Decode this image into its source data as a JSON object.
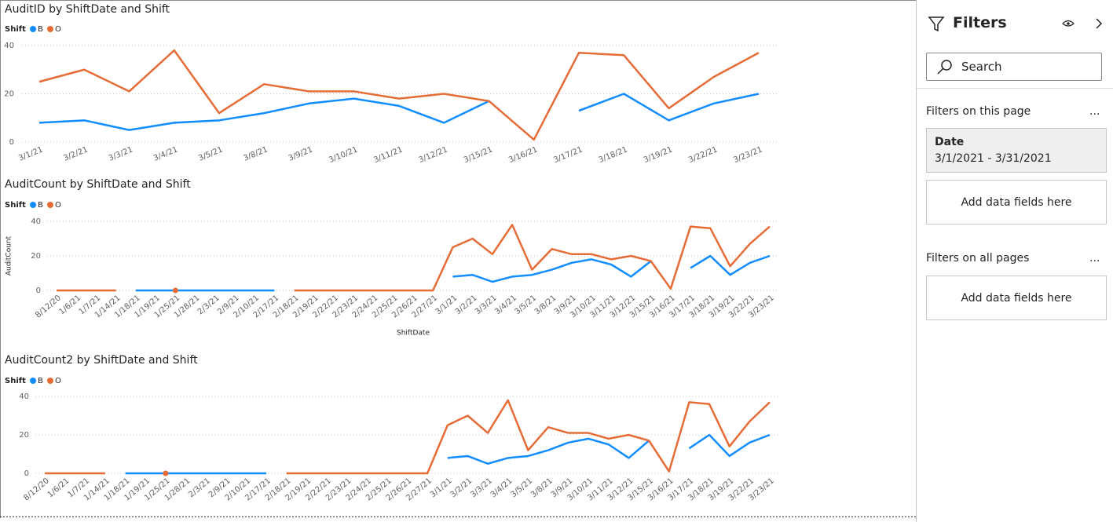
{
  "chart_data": [
    {
      "type": "line",
      "title": "AuditID by ShiftDate and Shift",
      "legend_title": "Shift",
      "categories": [
        "3/1/21",
        "3/2/21",
        "3/3/21",
        "3/4/21",
        "3/5/21",
        "3/8/21",
        "3/9/21",
        "3/10/21",
        "3/11/21",
        "3/12/21",
        "3/15/21",
        "3/16/21",
        "3/17/21",
        "3/18/21",
        "3/19/21",
        "3/22/21",
        "3/23/21"
      ],
      "series": [
        {
          "name": "B",
          "color": "#118DFF",
          "values": [
            8,
            9,
            5,
            8,
            9,
            12,
            16,
            18,
            15,
            8,
            17,
            null,
            13,
            20,
            9,
            16,
            20
          ]
        },
        {
          "name": "O",
          "color": "#E66C37",
          "values": [
            25,
            30,
            21,
            38,
            12,
            24,
            21,
            21,
            18,
            20,
            17,
            1,
            37,
            36,
            14,
            27,
            37
          ]
        }
      ],
      "ylim": [
        0,
        40
      ],
      "yticks": [
        0,
        20,
        40
      ],
      "grid": true
    },
    {
      "type": "line",
      "title": "AuditCount by ShiftDate and Shift",
      "legend_title": "Shift",
      "y_label": "AuditCount",
      "x_label": "ShiftDate",
      "categories": [
        "8/12/20",
        "1/6/21",
        "1/7/21",
        "1/14/21",
        "1/18/21",
        "1/19/21",
        "1/25/21",
        "1/28/21",
        "2/3/21",
        "2/9/21",
        "2/10/21",
        "2/17/21",
        "2/18/21",
        "2/19/21",
        "2/22/21",
        "2/23/21",
        "2/24/21",
        "2/25/21",
        "2/26/21",
        "2/27/21",
        "3/1/21",
        "3/2/21",
        "3/3/21",
        "3/4/21",
        "3/5/21",
        "3/8/21",
        "3/9/21",
        "3/10/21",
        "3/11/21",
        "3/12/21",
        "3/15/21",
        "3/16/21",
        "3/17/21",
        "3/18/21",
        "3/19/21",
        "3/22/21",
        "3/23/21"
      ],
      "series": [
        {
          "name": "B",
          "color": "#118DFF",
          "values": [
            null,
            null,
            null,
            null,
            0,
            0,
            0,
            0,
            0,
            0,
            0,
            0,
            null,
            null,
            null,
            null,
            null,
            null,
            null,
            null,
            8,
            9,
            5,
            8,
            9,
            12,
            16,
            18,
            15,
            8,
            17,
            null,
            13,
            20,
            9,
            16,
            20
          ]
        },
        {
          "name": "O",
          "color": "#E66C37",
          "values": [
            0,
            0,
            0,
            0,
            null,
            null,
            0,
            null,
            null,
            null,
            null,
            null,
            0,
            0,
            0,
            0,
            0,
            0,
            0,
            0,
            25,
            30,
            21,
            38,
            12,
            24,
            21,
            21,
            18,
            20,
            17,
            1,
            37,
            36,
            14,
            27,
            37
          ]
        }
      ],
      "ylim": [
        0,
        40
      ],
      "yticks": [
        0,
        20,
        40
      ],
      "grid": true
    },
    {
      "type": "line",
      "title": "AuditCount2 by ShiftDate and Shift",
      "legend_title": "Shift",
      "categories": [
        "8/12/20",
        "1/6/21",
        "1/7/21",
        "1/14/21",
        "1/18/21",
        "1/19/21",
        "1/25/21",
        "1/28/21",
        "2/3/21",
        "2/9/21",
        "2/10/21",
        "2/17/21",
        "2/18/21",
        "2/19/21",
        "2/22/21",
        "2/23/21",
        "2/24/21",
        "2/25/21",
        "2/26/21",
        "2/27/21",
        "3/1/21",
        "3/2/21",
        "3/3/21",
        "3/4/21",
        "3/5/21",
        "3/8/21",
        "3/9/21",
        "3/10/21",
        "3/11/21",
        "3/12/21",
        "3/15/21",
        "3/16/21",
        "3/17/21",
        "3/18/21",
        "3/19/21",
        "3/22/21",
        "3/23/21"
      ],
      "series": [
        {
          "name": "B",
          "color": "#118DFF",
          "values": [
            null,
            null,
            null,
            null,
            0,
            0,
            0,
            0,
            0,
            0,
            0,
            0,
            null,
            null,
            null,
            null,
            null,
            null,
            null,
            null,
            8,
            9,
            5,
            8,
            9,
            12,
            16,
            18,
            15,
            8,
            17,
            null,
            13,
            20,
            9,
            16,
            20
          ]
        },
        {
          "name": "O",
          "color": "#E66C37",
          "values": [
            0,
            0,
            0,
            0,
            null,
            null,
            0,
            null,
            null,
            null,
            null,
            null,
            0,
            0,
            0,
            0,
            0,
            0,
            0,
            0,
            25,
            30,
            21,
            38,
            12,
            24,
            21,
            21,
            18,
            20,
            17,
            1,
            37,
            36,
            14,
            27,
            37
          ]
        }
      ],
      "ylim": [
        0,
        40
      ],
      "yticks": [
        0,
        20,
        40
      ],
      "grid": true
    }
  ],
  "filters_pane": {
    "title": "Filters",
    "search": "Search",
    "page_heading": "Filters on this page",
    "page_more": "...",
    "card": {
      "field": "Date",
      "value": "3/1/2021 - 3/31/2021"
    },
    "page_add": "Add data fields here",
    "all_heading": "Filters on all pages",
    "all_more": "...",
    "all_add": "Add data fields here"
  }
}
